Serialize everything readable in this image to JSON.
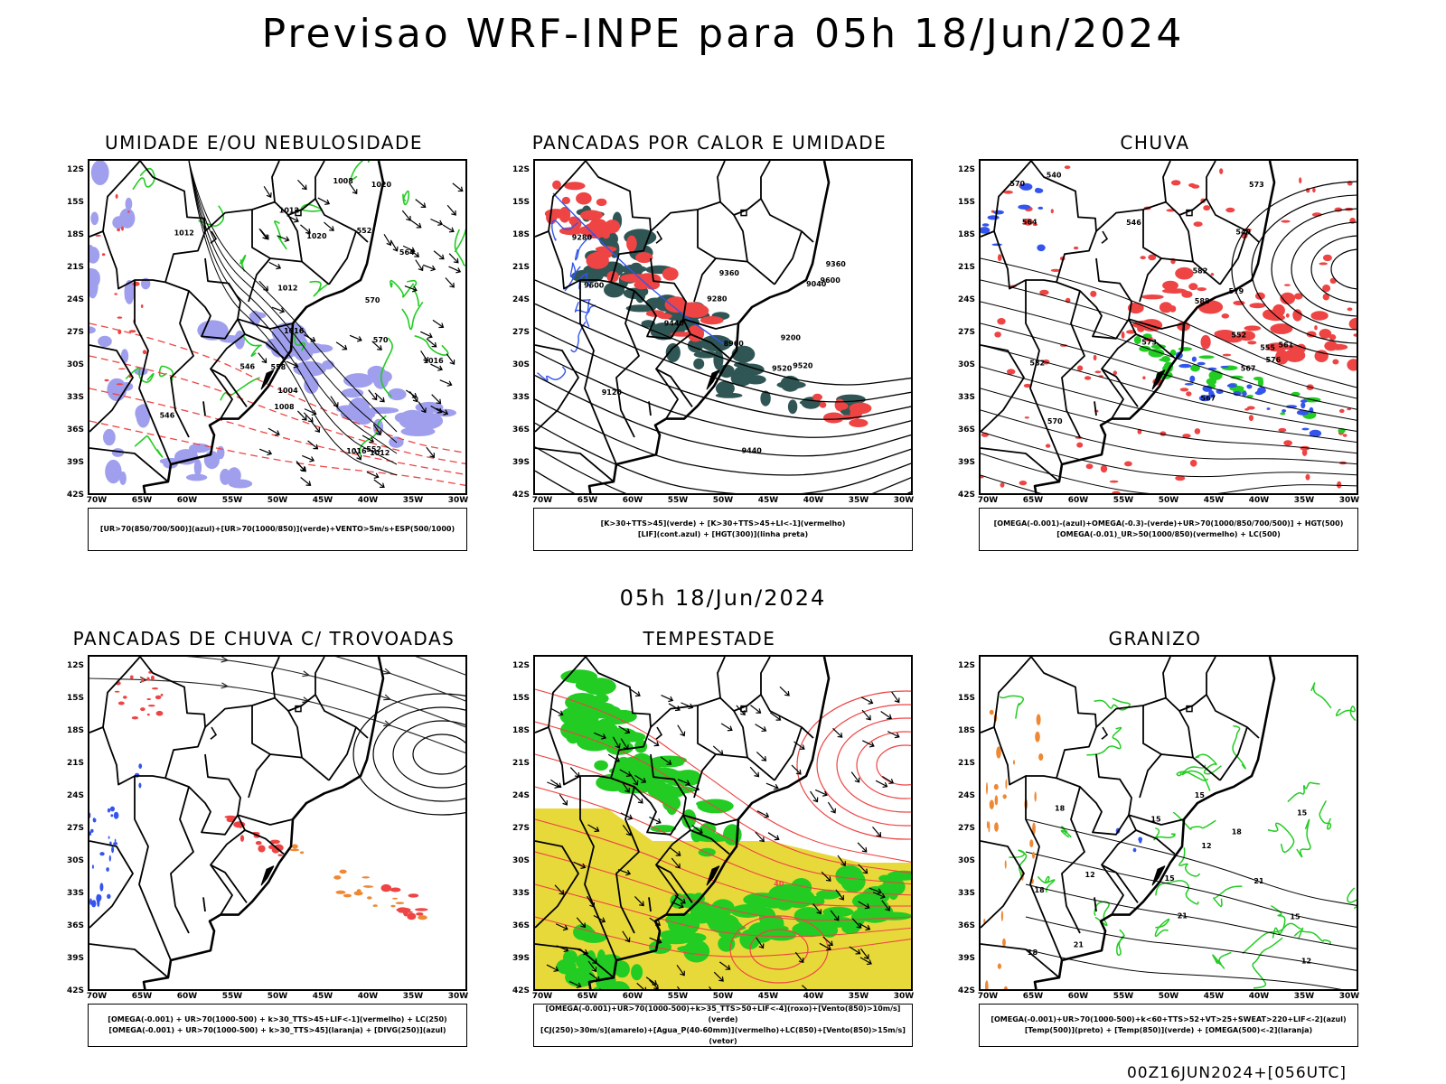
{
  "header": {
    "title": "Previsao WRF-INPE  para 05h 18/Jun/2024",
    "subtitle": "05h 18/Jun/2024",
    "run": "00Z16JUN2024+[056UTC]"
  },
  "axes": {
    "lat_labels": [
      "12S",
      "15S",
      "18S",
      "21S",
      "24S",
      "27S",
      "30S",
      "33S",
      "36S",
      "39S",
      "42S"
    ],
    "lon_labels": [
      "70W",
      "65W",
      "60W",
      "55W",
      "50W",
      "45W",
      "40W",
      "35W",
      "30W"
    ]
  },
  "colors": {
    "blue_field": "#9f9fee",
    "blue_contour": "#3355ee",
    "green": "#22cc22",
    "red": "#ee4444",
    "orange": "#ee8833",
    "yellow": "#e8d93a",
    "dark_teal": "#2f5654",
    "streamline": "#222222"
  },
  "panels": [
    {
      "id": "umidade",
      "title": "UMIDADE E/OU NEBULOSIDADE",
      "legend": [
        "[UR>70(850/700/500)](azul)+[UR>70(1000/850)](verde)+VENTO>5m/s+ESP(500/1000)"
      ],
      "labels": [
        "1016",
        "1012",
        "1012",
        "1008",
        "1012",
        "1020",
        "1016",
        "1012",
        "1008",
        "1016",
        "1004",
        "1020",
        "570",
        "570",
        "564",
        "558",
        "552",
        "546",
        "546",
        "552"
      ]
    },
    {
      "id": "pancadas-calor",
      "title": "PANCADAS POR CALOR E UMIDADE",
      "legend": [
        "[K>30+TTS>45](verde) + [K>30+TTS>45+LI<-1](vermelho)",
        "[LIF](cont.azul) + [HGT(300)](linha preta)"
      ],
      "labels": [
        "9520",
        "9600",
        "9440",
        "9360",
        "9280",
        "9200",
        "9120",
        "9040",
        "8960",
        "9520",
        "9600",
        "9440",
        "9360",
        "9280"
      ]
    },
    {
      "id": "chuva",
      "title": "CHUVA",
      "legend": [
        "[OMEGA(-0.001)-(azul)+OMEGA(-0.3)-(verde)+UR>70(1000/850/700/500)] + HGT(500)",
        "[OMEGA(-0.01)_UR>50(1000/850)(vermelho) + LC(500)"
      ],
      "labels": [
        "582",
        "582",
        "588",
        "579",
        "576",
        "573",
        "573",
        "570",
        "567",
        "564",
        "561",
        "555",
        "552",
        "549",
        "546",
        "540",
        "570",
        "567"
      ]
    },
    {
      "id": "trovoadas",
      "title": "PANCADAS DE CHUVA C/ TROVOADAS",
      "legend": [
        "[OMEGA(-0.001) + UR>70(1000-500) + k>30_TTS>45+LIF<-1](vermelho) + LC(250)",
        "[OMEGA(-0.001) + UR>70(1000-500) + k>30_TTS>45](laranja) + [DIVG(250)](azul)"
      ],
      "labels": []
    },
    {
      "id": "tempestade",
      "title": "TEMPESTADE",
      "legend": [
        "[OMEGA(-0.001)+UR>70(1000-500)+k>35_TTS>50+LIF<-4](roxo)+[Vento(850)>10m/s](verde)",
        "[CJ(250)>30m/s](amarelo)+[Agua_P(40-60mm)](vermelho)+LC(850)+[Vento(850)>15m/s](vetor)"
      ],
      "labels": [
        "40"
      ]
    },
    {
      "id": "granizo",
      "title": "GRANIZO",
      "legend": [
        "[OMEGA(-0.001)+UR>70(1000-500)+k<60+TTS>52+VT>25+SWEAT>220+LIF<-2](azul)",
        "[Temp(500)](preto) + [Temp(850)](verde) + [OMEGA(500)<-2](laranja)"
      ],
      "labels": [
        "15",
        "18",
        "18",
        "21",
        "21",
        "21",
        "12",
        "15",
        "18",
        "15",
        "18",
        "15",
        "12",
        "15",
        "12"
      ]
    }
  ]
}
